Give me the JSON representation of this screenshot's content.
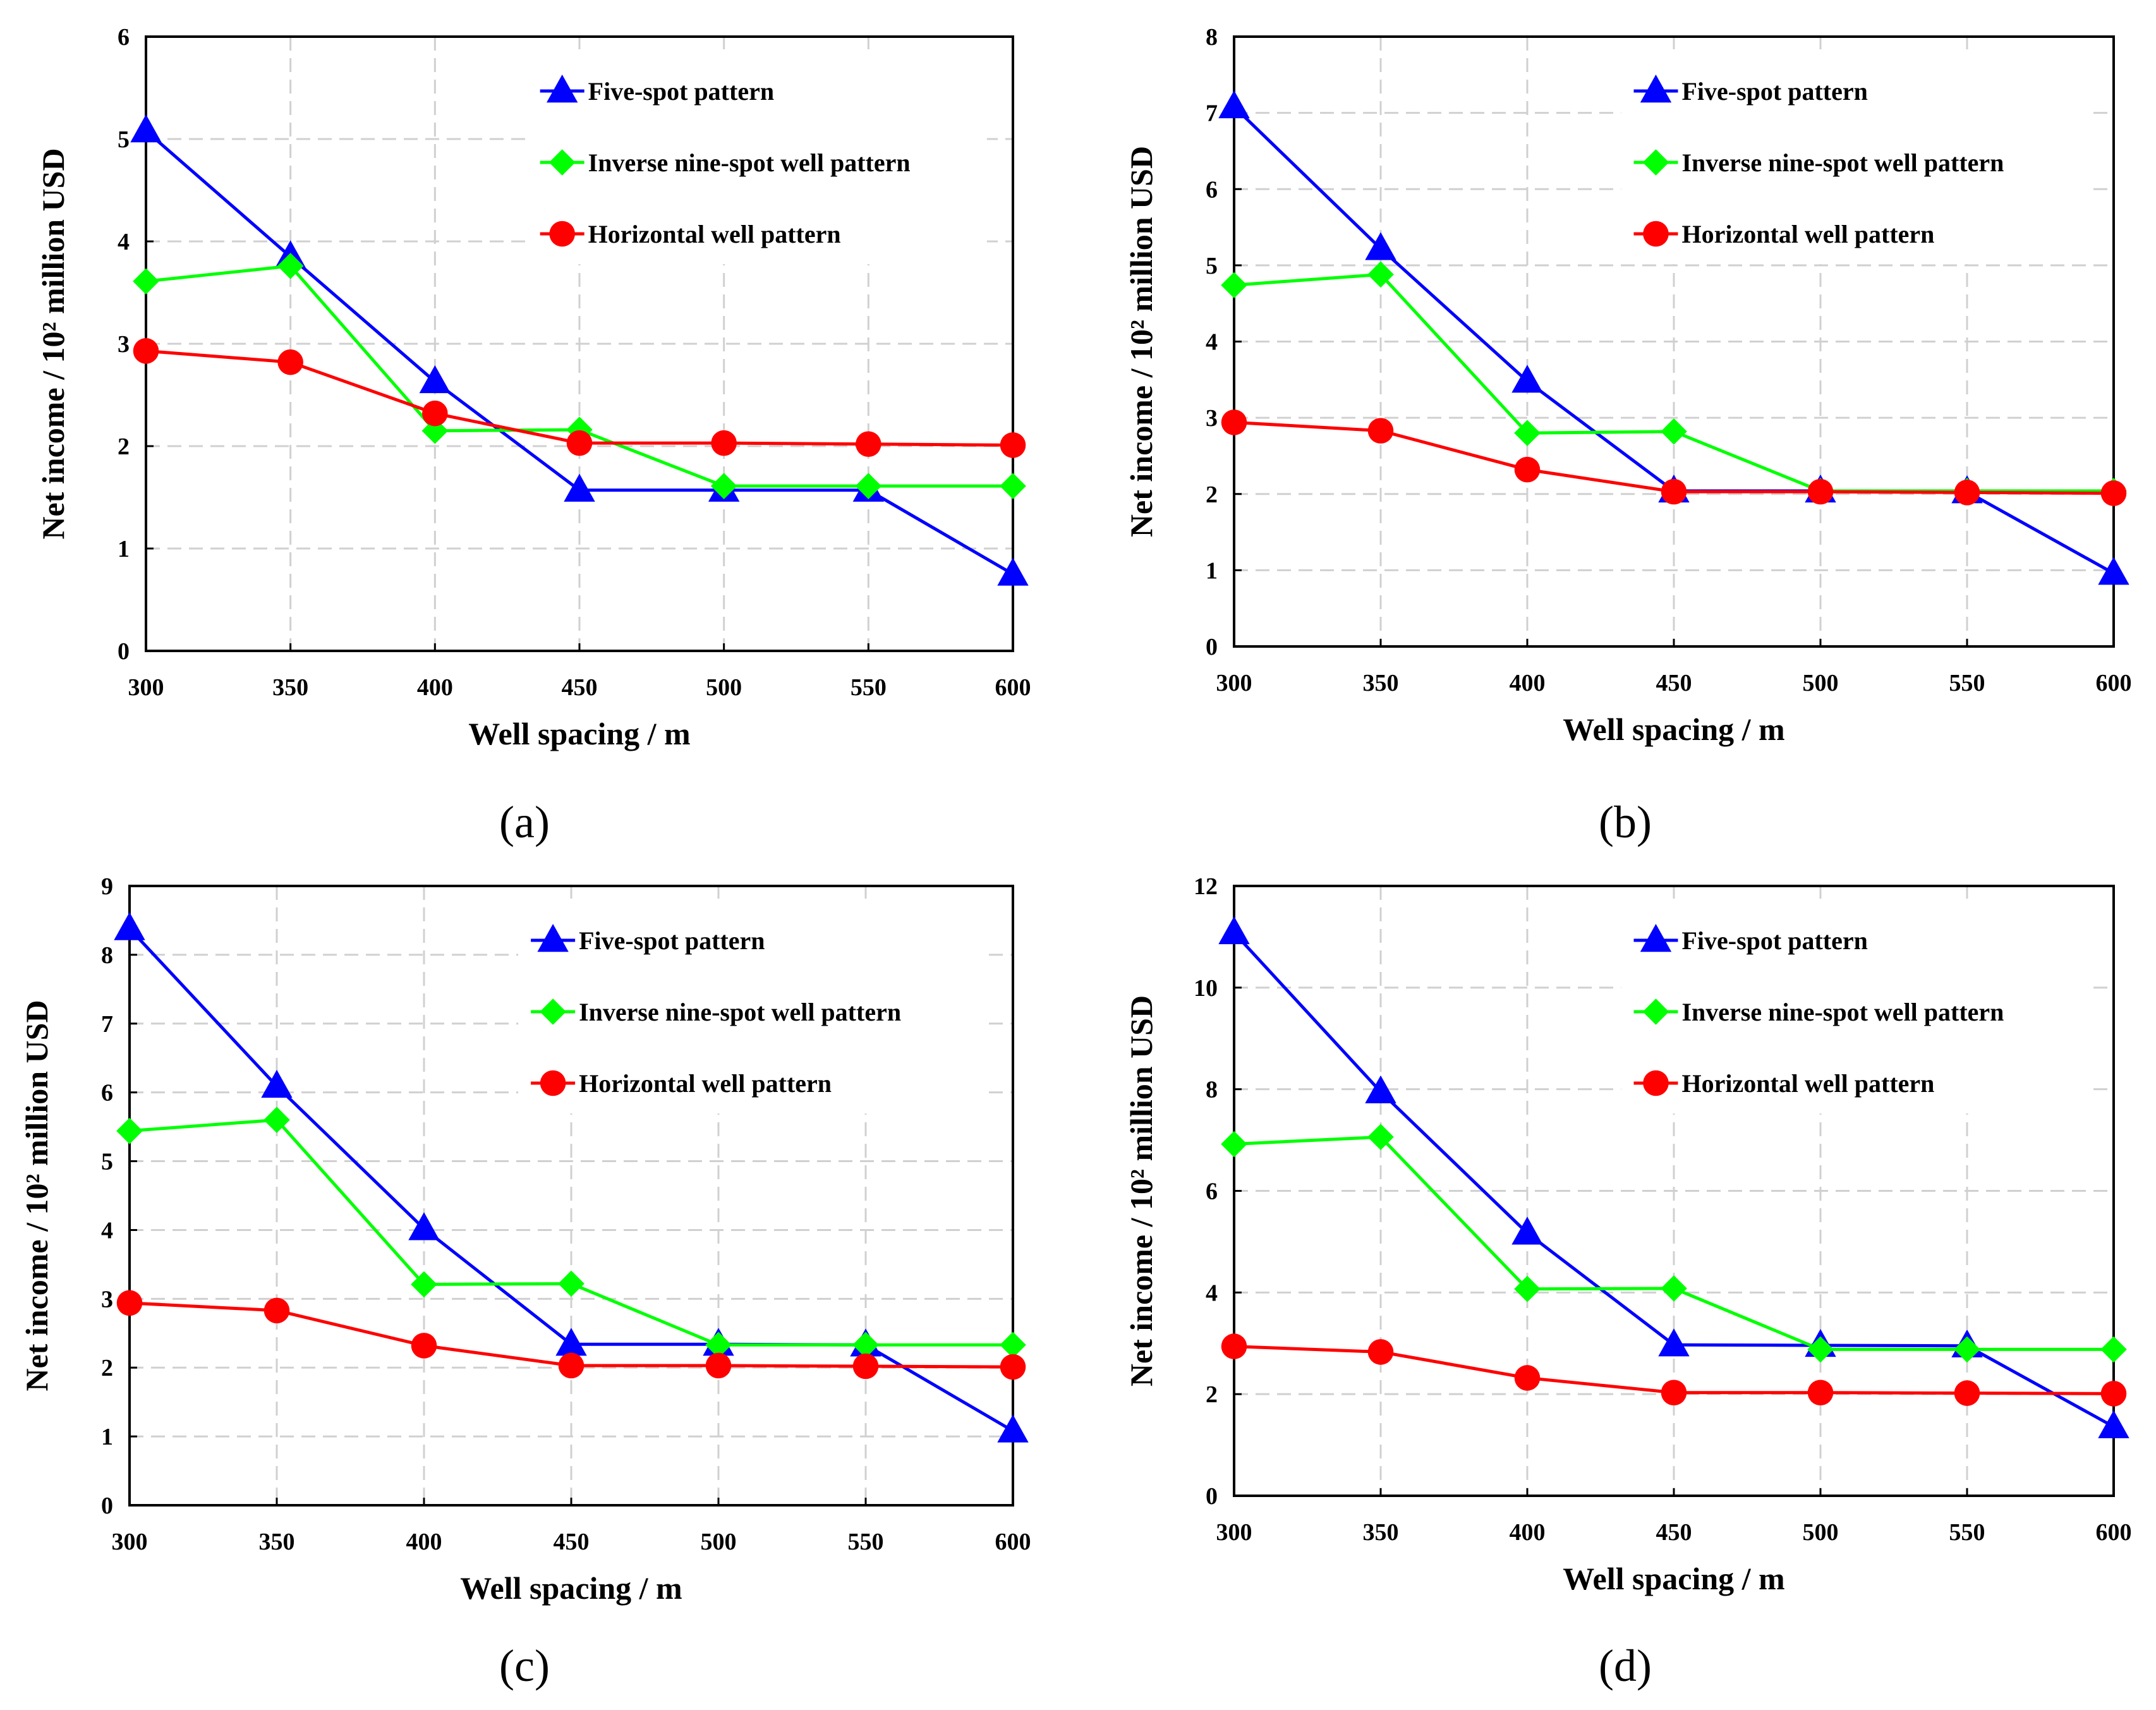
{
  "chart_data": [
    {
      "type": "line",
      "caption": "(a)",
      "xlabel": "Well spacing / m",
      "ylabel": "Net income / 10² million USD",
      "x": [
        300,
        350,
        400,
        450,
        500,
        550,
        600
      ],
      "xlim": [
        300,
        600
      ],
      "ylim": [
        0,
        6
      ],
      "yticks": [
        0,
        1,
        2,
        3,
        4,
        5,
        6
      ],
      "grid": true,
      "legend_position": "top-right",
      "series": [
        {
          "name": "Five-spot pattern",
          "color": "#0000ff",
          "marker": "triangle",
          "values": [
            5.08,
            3.85,
            2.63,
            1.57,
            1.57,
            1.57,
            0.75
          ]
        },
        {
          "name": "Inverse nine-spot well pattern",
          "color": "#00ff00",
          "marker": "diamond",
          "values": [
            3.61,
            3.76,
            2.15,
            2.16,
            1.61,
            1.61,
            1.61
          ]
        },
        {
          "name": "Horizontal well pattern",
          "color": "#ff0000",
          "marker": "circle",
          "values": [
            2.93,
            2.82,
            2.32,
            2.03,
            2.03,
            2.02,
            2.01
          ]
        }
      ]
    },
    {
      "type": "line",
      "caption": "(b)",
      "xlabel": "Well spacing / m",
      "ylabel": "Net income / 10² million USD",
      "x": [
        300,
        350,
        400,
        450,
        500,
        550,
        600
      ],
      "xlim": [
        300,
        600
      ],
      "ylim": [
        0,
        8
      ],
      "yticks": [
        0,
        1,
        2,
        3,
        4,
        5,
        6,
        7,
        8
      ],
      "grid": true,
      "legend_position": "top-right",
      "series": [
        {
          "name": "Five-spot pattern",
          "color": "#0000ff",
          "marker": "triangle",
          "values": [
            7.08,
            5.22,
            3.48,
            2.04,
            2.04,
            2.03,
            0.96
          ]
        },
        {
          "name": "Inverse nine-spot well pattern",
          "color": "#00ff00",
          "marker": "diamond",
          "values": [
            4.74,
            4.88,
            2.8,
            2.82,
            2.04,
            2.04,
            2.04
          ]
        },
        {
          "name": "Horizontal well pattern",
          "color": "#ff0000",
          "marker": "circle",
          "values": [
            2.94,
            2.83,
            2.32,
            2.03,
            2.03,
            2.02,
            2.01
          ]
        }
      ]
    },
    {
      "type": "line",
      "caption": "(c)",
      "xlabel": "Well spacing / m",
      "ylabel": "Net income / 10² million USD",
      "x": [
        300,
        350,
        400,
        450,
        500,
        550,
        600
      ],
      "xlim": [
        300,
        600
      ],
      "ylim": [
        0,
        9
      ],
      "yticks": [
        0,
        1,
        2,
        3,
        4,
        5,
        6,
        7,
        8,
        9
      ],
      "grid": true,
      "legend_position": "top-right",
      "series": [
        {
          "name": "Five-spot pattern",
          "color": "#0000ff",
          "marker": "triangle",
          "values": [
            8.38,
            6.09,
            4.02,
            2.34,
            2.34,
            2.33,
            1.08
          ]
        },
        {
          "name": "Inverse nine-spot well pattern",
          "color": "#00ff00",
          "marker": "diamond",
          "values": [
            5.44,
            5.6,
            3.21,
            3.22,
            2.33,
            2.33,
            2.33
          ]
        },
        {
          "name": "Horizontal well pattern",
          "color": "#ff0000",
          "marker": "circle",
          "values": [
            2.94,
            2.83,
            2.32,
            2.03,
            2.03,
            2.02,
            2.01
          ]
        }
      ]
    },
    {
      "type": "line",
      "caption": "(d)",
      "xlabel": "Well spacing / m",
      "ylabel": "Net income / 10² million USD",
      "x": [
        300,
        350,
        400,
        450,
        500,
        550,
        600
      ],
      "xlim": [
        300,
        600
      ],
      "ylim": [
        0,
        12
      ],
      "yticks": [
        0,
        2,
        4,
        6,
        8,
        10,
        12
      ],
      "grid": true,
      "legend_position": "top-right",
      "series": [
        {
          "name": "Five-spot pattern",
          "color": "#0000ff",
          "marker": "triangle",
          "values": [
            11.08,
            7.95,
            5.17,
            2.97,
            2.96,
            2.95,
            1.36
          ]
        },
        {
          "name": "Inverse nine-spot well pattern",
          "color": "#00ff00",
          "marker": "diamond",
          "values": [
            6.92,
            7.06,
            4.07,
            4.08,
            2.88,
            2.88,
            2.88
          ]
        },
        {
          "name": "Horizontal well pattern",
          "color": "#ff0000",
          "marker": "circle",
          "values": [
            2.94,
            2.83,
            2.32,
            2.03,
            2.03,
            2.02,
            2.01
          ]
        }
      ]
    }
  ]
}
